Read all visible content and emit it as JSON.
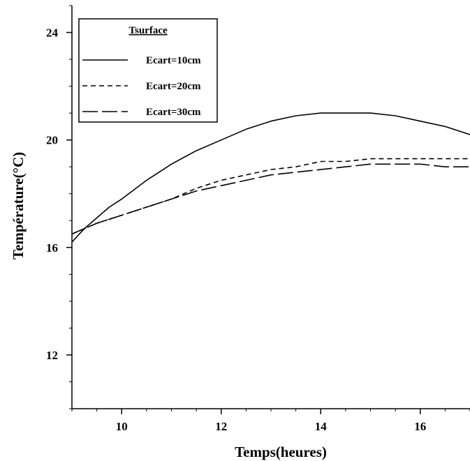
{
  "chart_data": {
    "type": "line",
    "xlabel": "Temps(heures)",
    "ylabel": "Température(°C)",
    "xlim": [
      9,
      17
    ],
    "ylim": [
      10,
      25
    ],
    "x_ticks": [
      10,
      12,
      14,
      16
    ],
    "y_ticks": [
      12,
      16,
      20,
      24
    ],
    "x_minor_step": 0.5,
    "y_minor_step": 1,
    "grid": false,
    "legend": {
      "title": "Tsurface",
      "placement": "top-left"
    },
    "series": [
      {
        "name": "Ecart=10cm",
        "style": "solid",
        "color": "#000000",
        "x": [
          9.0,
          9.25,
          9.5,
          9.75,
          10.0,
          10.5,
          11.0,
          11.5,
          12.0,
          12.5,
          13.0,
          13.5,
          14.0,
          14.5,
          15.0,
          15.5,
          16.0,
          16.5,
          17.0
        ],
        "y": [
          16.2,
          16.7,
          17.1,
          17.5,
          17.8,
          18.5,
          19.1,
          19.6,
          20.0,
          20.4,
          20.7,
          20.9,
          21.0,
          21.0,
          21.0,
          20.9,
          20.7,
          20.5,
          20.2
        ]
      },
      {
        "name": "Ecart=20cm",
        "style": "dashed",
        "color": "#000000",
        "x": [
          9.0,
          9.5,
          10.0,
          10.5,
          11.0,
          11.5,
          12.0,
          12.5,
          13.0,
          13.5,
          14.0,
          14.5,
          15.0,
          15.5,
          16.0,
          16.5,
          17.0
        ],
        "y": [
          16.5,
          16.9,
          17.2,
          17.5,
          17.8,
          18.2,
          18.5,
          18.7,
          18.9,
          19.0,
          19.2,
          19.2,
          19.3,
          19.3,
          19.3,
          19.3,
          19.3
        ]
      },
      {
        "name": "Ecart=30cm",
        "style": "longdash",
        "color": "#000000",
        "x": [
          9.0,
          9.5,
          10.0,
          10.5,
          11.0,
          11.5,
          12.0,
          12.5,
          13.0,
          13.5,
          14.0,
          14.5,
          15.0,
          15.5,
          16.0,
          16.5,
          17.0
        ],
        "y": [
          16.5,
          16.9,
          17.2,
          17.5,
          17.8,
          18.1,
          18.3,
          18.5,
          18.7,
          18.8,
          18.9,
          19.0,
          19.1,
          19.1,
          19.1,
          19.0,
          19.0
        ]
      }
    ]
  }
}
